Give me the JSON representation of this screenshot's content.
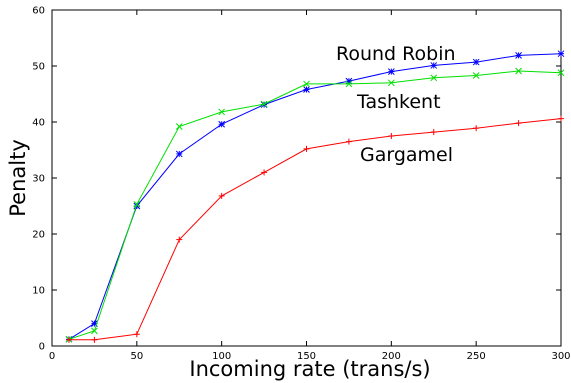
{
  "chart_data": {
    "type": "line",
    "title": "",
    "xlabel": "Incoming rate (trans/s)",
    "ylabel": "Penalty",
    "xlim": [
      0,
      300
    ],
    "ylim": [
      0,
      60
    ],
    "x_ticks": [
      "0",
      "50",
      "100",
      "150",
      "200",
      "250",
      "300"
    ],
    "y_ticks": [
      "0",
      "10",
      "20",
      "30",
      "40",
      "50",
      "60"
    ],
    "grid": false,
    "legend": "none",
    "x": [
      10,
      25,
      50,
      75,
      100,
      125,
      150,
      175,
      200,
      225,
      250,
      275,
      300
    ],
    "series": [
      {
        "name": "Round Robin",
        "color": "#0000ff",
        "marker": "asterisk",
        "values": [
          1.2,
          4.0,
          25.0,
          34.3,
          39.6,
          43.1,
          45.8,
          47.3,
          49.0,
          50.1,
          50.7,
          51.9,
          52.2
        ]
      },
      {
        "name": "Tashkent",
        "color": "#00e000",
        "marker": "x",
        "values": [
          1.2,
          2.7,
          25.3,
          39.2,
          41.8,
          43.2,
          46.8,
          46.8,
          47.0,
          47.9,
          48.3,
          49.1,
          48.8
        ]
      },
      {
        "name": "Gargamel",
        "color": "#ff0000",
        "marker": "plus",
        "values": [
          1.1,
          1.1,
          2.1,
          19.0,
          26.8,
          31.0,
          35.2,
          36.5,
          37.5,
          38.2,
          38.9,
          39.8,
          40.6
        ]
      }
    ]
  }
}
